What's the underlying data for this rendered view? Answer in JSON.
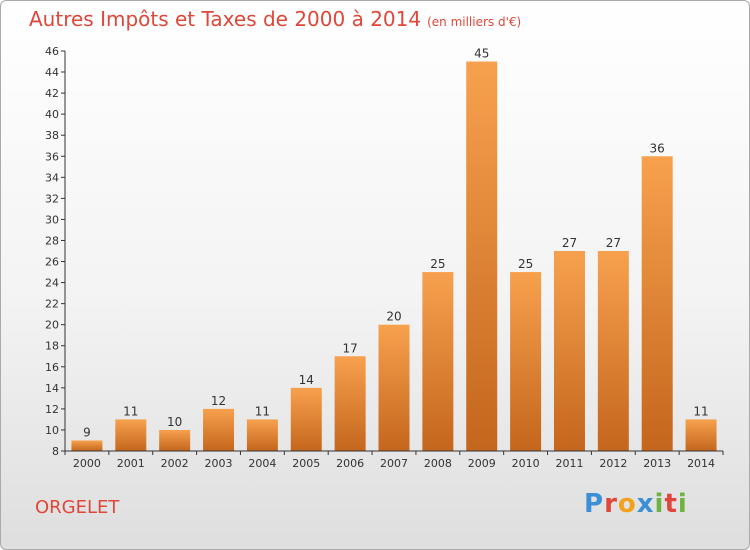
{
  "chart_data": {
    "type": "bar",
    "title": "Autres Impôts et Taxes de 2000 à 2014",
    "subtitle": "(en milliers d'€)",
    "categories": [
      "2000",
      "2001",
      "2002",
      "2003",
      "2004",
      "2005",
      "2006",
      "2007",
      "2008",
      "2009",
      "2010",
      "2011",
      "2012",
      "2013",
      "2014"
    ],
    "values": [
      9,
      11,
      10,
      12,
      11,
      14,
      17,
      20,
      25,
      45,
      25,
      27,
      27,
      36,
      11
    ],
    "ylim": [
      8,
      46
    ],
    "ytick_step": 2,
    "grid": false,
    "colors": {
      "bar_light": "#f7a14e",
      "bar_dark": "#c4661d",
      "axis": "#333333"
    }
  },
  "commune": "ORGELET",
  "logo": {
    "letters": [
      "P",
      "r",
      "o",
      "x",
      "i",
      "t",
      "i"
    ],
    "colors": [
      "#3a8fd6",
      "#e0473a",
      "#f2a11c",
      "#3a8fd6",
      "#6db33f",
      "#e0473a",
      "#6db33f"
    ]
  }
}
